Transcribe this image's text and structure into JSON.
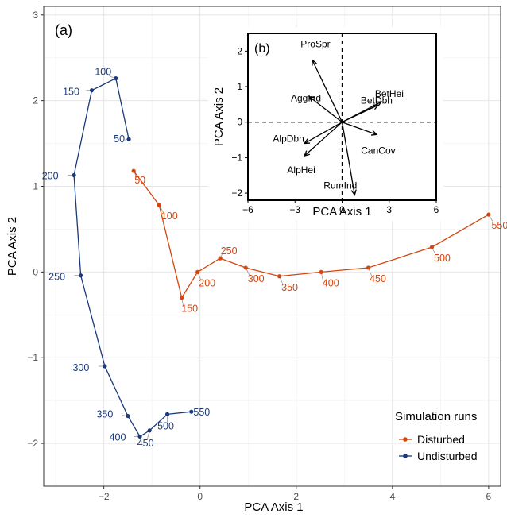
{
  "chart_data": [
    {
      "panel_label": "(a)",
      "type": "line",
      "xlabel": "PCA Axis 1",
      "ylabel": "PCA Axis 2",
      "xlim": [
        -3.25,
        6.25
      ],
      "ylim": [
        -2.5,
        3.1
      ],
      "x_ticks": [
        -2,
        0,
        2,
        4,
        6
      ],
      "y_ticks": [
        -2,
        -1,
        0,
        1,
        2,
        3
      ],
      "x_tick_labels": [
        "−2",
        "0",
        "2",
        "4",
        "6"
      ],
      "y_tick_labels": [
        "−2",
        "−1",
        "0",
        "1",
        "2",
        "3"
      ],
      "grid": true,
      "legend": {
        "title": "Simulation runs",
        "placement": "bottom-right",
        "entries": [
          "Disturbed",
          "Undisturbed"
        ]
      },
      "series": [
        {
          "name": "Disturbed",
          "color": "#D4470F",
          "points": [
            {
              "label": "50",
              "x": -1.38,
              "y": 1.18
            },
            {
              "label": "100",
              "x": -0.85,
              "y": 0.78
            },
            {
              "label": "150",
              "x": -0.38,
              "y": -0.3
            },
            {
              "label": "200",
              "x": -0.05,
              "y": 0.0
            },
            {
              "label": "250",
              "x": 0.42,
              "y": 0.16
            },
            {
              "label": "300",
              "x": 0.95,
              "y": 0.05
            },
            {
              "label": "350",
              "x": 1.65,
              "y": -0.05
            },
            {
              "label": "400",
              "x": 2.52,
              "y": 0.0
            },
            {
              "label": "450",
              "x": 3.5,
              "y": 0.05
            },
            {
              "label": "500",
              "x": 4.82,
              "y": 0.29
            },
            {
              "label": "550",
              "x": 6.0,
              "y": 0.67
            }
          ]
        },
        {
          "name": "Undisturbed",
          "color": "#1B3A7A",
          "points": [
            {
              "label": "50",
              "x": -1.48,
              "y": 1.55
            },
            {
              "label": "100",
              "x": -1.75,
              "y": 2.26
            },
            {
              "label": "150",
              "x": -2.25,
              "y": 2.12
            },
            {
              "label": "200",
              "x": -2.62,
              "y": 1.13
            },
            {
              "label": "250",
              "x": -2.48,
              "y": -0.04
            },
            {
              "label": "300",
              "x": -1.98,
              "y": -1.1
            },
            {
              "label": "350",
              "x": -1.5,
              "y": -1.68
            },
            {
              "label": "400",
              "x": -1.25,
              "y": -1.92
            },
            {
              "label": "450",
              "x": -1.05,
              "y": -1.85
            },
            {
              "label": "500",
              "x": -0.68,
              "y": -1.66
            },
            {
              "label": "550",
              "x": -0.18,
              "y": -1.63
            }
          ]
        }
      ]
    },
    {
      "panel_label": "(b)",
      "type": "biplot",
      "xlabel": "PCA Axis 1",
      "ylabel": "PCA Axis 2",
      "xlim": [
        -6,
        6
      ],
      "ylim": [
        -2.2,
        2.5
      ],
      "x_ticks": [
        -6,
        -3,
        0,
        3,
        6
      ],
      "y_ticks": [
        -2,
        -1,
        0,
        1,
        2
      ],
      "x_tick_labels": [
        "−6",
        "−3",
        "0",
        "3",
        "6"
      ],
      "y_tick_labels": [
        "−2",
        "−1",
        "0",
        "1",
        "2"
      ],
      "grid": false,
      "reference_lines": "dashed lines at x = 0 and y = 0",
      "vectors": [
        {
          "label": "ProSpr",
          "x": -1.9,
          "y": 1.75
        },
        {
          "label": "AggInd",
          "x": -2.1,
          "y": 0.72
        },
        {
          "label": "BetHei",
          "x": 2.5,
          "y": 0.57
        },
        {
          "label": "BetDbh",
          "x": 2.3,
          "y": 0.48
        },
        {
          "label": "CanCov",
          "x": 2.2,
          "y": -0.35
        },
        {
          "label": "AlpDbh",
          "x": -2.4,
          "y": -0.6
        },
        {
          "label": "AlpHei",
          "x": -2.4,
          "y": -0.95
        },
        {
          "label": "RumInd",
          "x": 0.8,
          "y": -2.05
        }
      ]
    }
  ]
}
